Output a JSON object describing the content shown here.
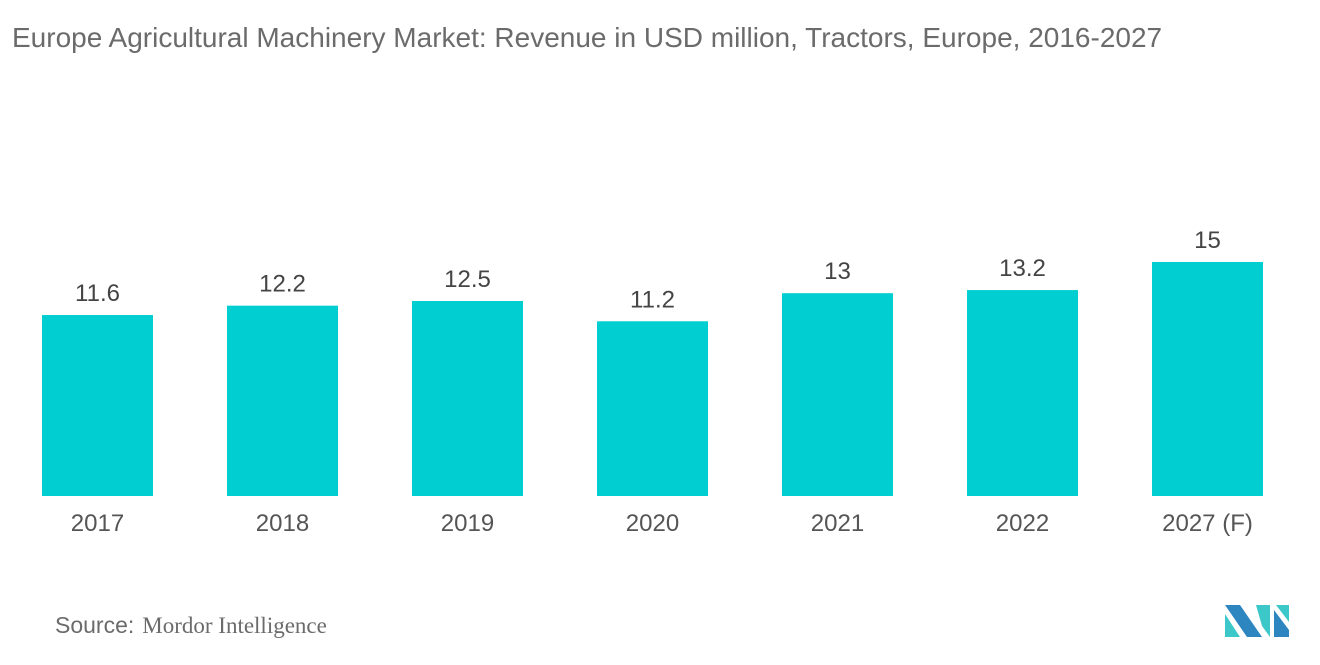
{
  "chart_data": {
    "type": "bar",
    "title": "Europe Agricultural Machinery Market: Revenue in USD million, Tractors, Europe, 2016-2027",
    "categories": [
      "2017",
      "2018",
      "2019",
      "2020",
      "2021",
      "2022",
      "2027 (F)"
    ],
    "values": [
      11.6,
      12.2,
      12.5,
      11.2,
      13,
      13.2,
      15
    ],
    "data_labels": [
      "11.6",
      "12.2",
      "12.5",
      "11.2",
      "13",
      "13.2",
      "15"
    ],
    "xlabel": "",
    "ylabel": "",
    "ylim": [
      0,
      15
    ],
    "grid": false,
    "bar_color": "#00ced1"
  },
  "source": {
    "label": "Source:",
    "value": "Mordor Intelligence"
  },
  "logo": {
    "colors": [
      "#2e86c1",
      "#3cc8c8"
    ]
  }
}
